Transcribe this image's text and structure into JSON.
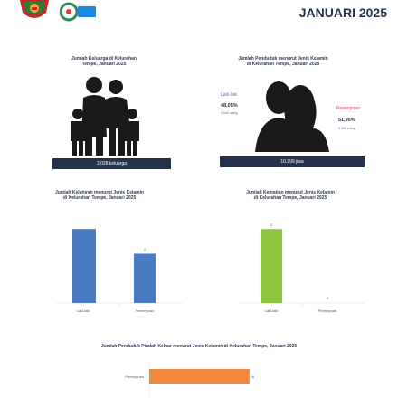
{
  "header": {
    "title": "JANUARI 2025",
    "logo2_text": "Desa Cantik"
  },
  "families": {
    "caption_line1": "Jumlah Keluarga di Kelurahan",
    "caption_line2": "Tempe, Januari 2025",
    "total_label": "2.028 keluarga"
  },
  "population": {
    "caption_line1": "Jumlah Penduduk menurut Jenis Kelamin",
    "caption_line2": "di Kelurahan Tempe, Januari 2025",
    "male_label": "Laki-laki",
    "male_pct": "48,05%",
    "male_count": "4.949 orang",
    "female_label": "Perempuan",
    "female_pct": "51,95%",
    "female_count": "5.350 orang",
    "total_label": "10.299 jiwa"
  },
  "births": {
    "caption_line1": "Jumlah Kelahiran menurut Jenis Kelamin",
    "caption_line2": "di Kelurahan Tempe, Januari 2025",
    "value_label_female": "2",
    "x_label_male": "Laki-laki",
    "x_label_female": "Perempuan",
    "color": "#4a7cc4"
  },
  "deaths": {
    "caption_line1": "Jumlah Kematian menurut Jenis Kelamin",
    "caption_line2": "di Kelurahan Tempe, Januari 2025",
    "value_label_male": "2",
    "value_label_female": "0",
    "x_label_male": "Laki-laki",
    "x_label_female": "Perempuan",
    "color": "#8dc63f"
  },
  "migration": {
    "caption": "Jumlah Penduduk Pindah Keluar menurut Jenis Kelamin di Kelurahan Tempe, Januari 2025",
    "y_label": "Perempuan",
    "value_label": "6",
    "color": "#f08a3a"
  },
  "chart_data": [
    {
      "type": "bar",
      "categories": [
        "Laki-laki",
        "Perempuan"
      ],
      "values": [
        3,
        2
      ],
      "ylim": [
        0,
        3.3
      ]
    },
    {
      "type": "bar",
      "categories": [
        "Laki-laki",
        "Perempuan"
      ],
      "values": [
        2,
        0
      ],
      "ylim": [
        0,
        2.2
      ]
    },
    {
      "type": "bar",
      "categories": [
        "Perempuan"
      ],
      "values": [
        6
      ],
      "xlim": [
        0,
        13
      ]
    }
  ]
}
